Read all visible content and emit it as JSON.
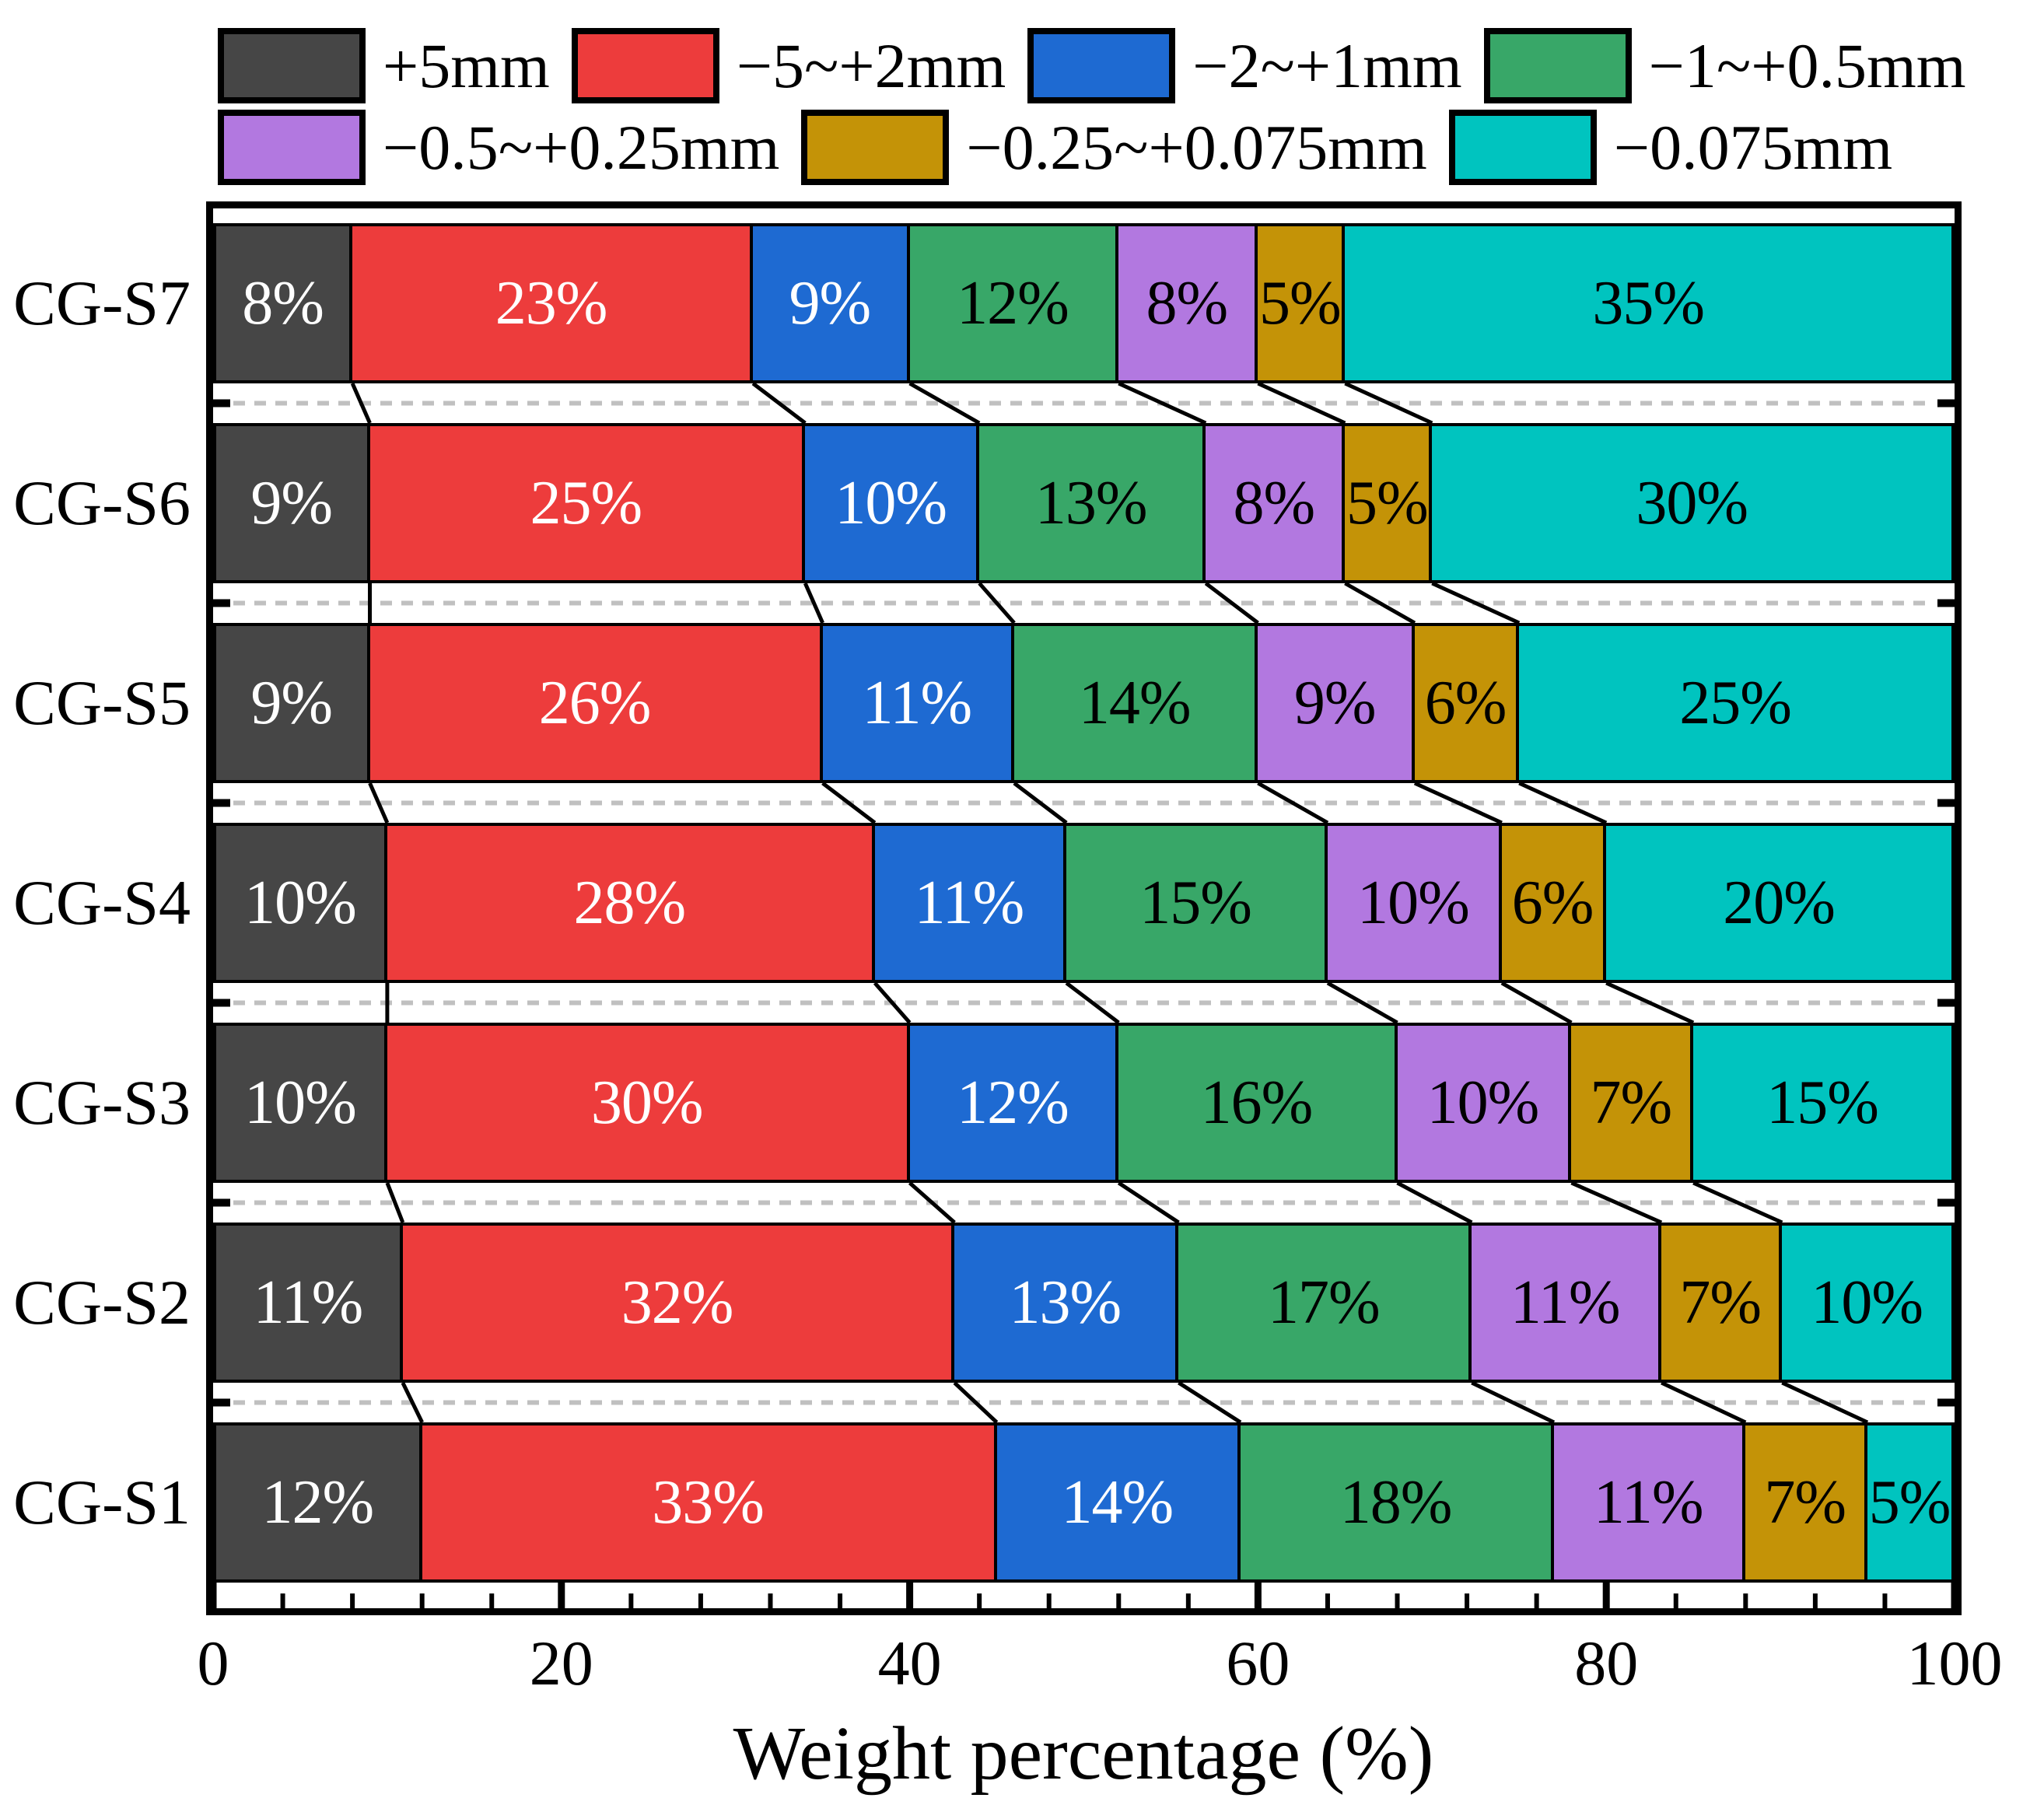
{
  "chart_data": {
    "type": "bar",
    "orientation": "horizontal",
    "stacked": true,
    "value_suffix": "%",
    "categories_top_to_bottom": [
      "CG-S7",
      "CG-S6",
      "CG-S5",
      "CG-S4",
      "CG-S3",
      "CG-S2",
      "CG-S1"
    ],
    "series": [
      {
        "label": "+5mm",
        "color": "#464646",
        "text_color": "#ffffff",
        "values": [
          8,
          9,
          9,
          10,
          10,
          11,
          12
        ]
      },
      {
        "label": "−5~+2mm",
        "color": "#ed3c3c",
        "text_color": "#ffffff",
        "values": [
          23,
          25,
          26,
          28,
          30,
          32,
          33
        ]
      },
      {
        "label": "−2~+1mm",
        "color": "#1e6ad2",
        "text_color": "#ffffff",
        "values": [
          9,
          10,
          11,
          11,
          12,
          13,
          14
        ]
      },
      {
        "label": "−1~+0.5mm",
        "color": "#38a768",
        "text_color": "#000000",
        "values": [
          12,
          13,
          14,
          15,
          16,
          17,
          18
        ]
      },
      {
        "label": "−0.5~+0.25mm",
        "color": "#b278e0",
        "text_color": "#000000",
        "values": [
          8,
          8,
          9,
          10,
          10,
          11,
          11
        ]
      },
      {
        "label": "−0.25~+0.075mm",
        "color": "#c49307",
        "text_color": "#000000",
        "values": [
          5,
          5,
          6,
          6,
          7,
          7,
          7
        ]
      },
      {
        "label": "−0.075mm",
        "color": "#00c4bf",
        "text_color": "#000000",
        "values": [
          35,
          30,
          25,
          20,
          15,
          10,
          5
        ]
      }
    ],
    "legend_rows": [
      [
        0,
        1,
        2,
        3
      ],
      [
        4,
        5,
        6
      ]
    ],
    "x_axis": {
      "label": "Weight percentage (%)",
      "min": 0,
      "max": 100,
      "major_ticks": [
        0,
        20,
        40,
        60,
        80,
        100
      ],
      "minor_tick_step": 4
    },
    "grid": {
      "between_category_dashed_lines": true,
      "dashed_line_color": "#c0c0c0",
      "connector_line_color": "#000000"
    }
  }
}
